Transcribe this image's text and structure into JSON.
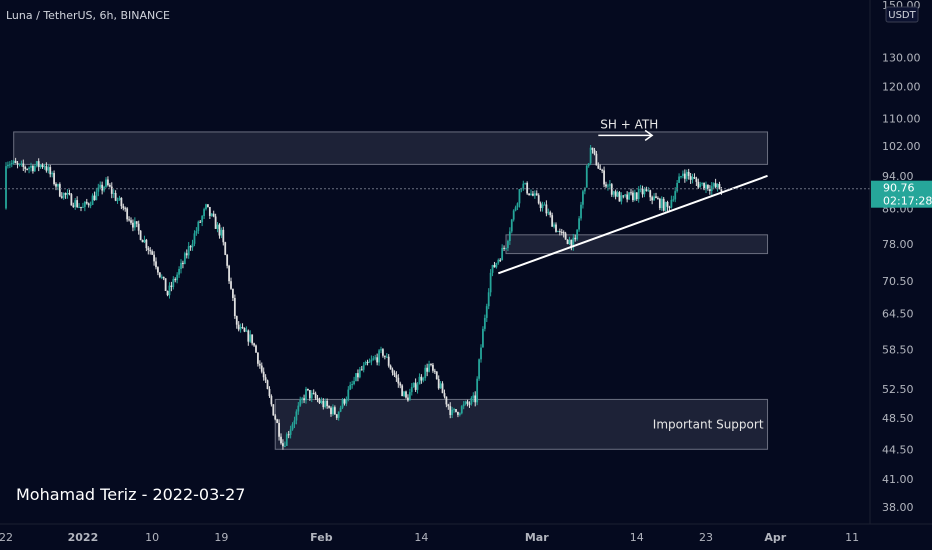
{
  "header": {
    "title": "Luna / TetherUS, 6h, BINANCE"
  },
  "signature": "Mohamad Teriz - 2022-03-27",
  "colors": {
    "background": "#050a1f",
    "up": "#26a69a",
    "down": "#e0e0e0",
    "tag": "#26a69a"
  },
  "chart_data": {
    "type": "candlestick",
    "symbol": "Luna / TetherUS",
    "timeframe": "6h",
    "exchange": "BINANCE",
    "price_axis": {
      "unit": "USDT",
      "scale": "log",
      "ticks": [
        "150.00",
        "130.00",
        "120.00",
        "110.00",
        "102.00",
        "94.00",
        "86.00",
        "78.00",
        "70.50",
        "64.50",
        "58.50",
        "52.50",
        "48.50",
        "44.50",
        "41.00",
        "38.00"
      ]
    },
    "time_axis": {
      "ticks": [
        "22",
        "2022",
        "10",
        "19",
        "Feb",
        "14",
        "Mar",
        "14",
        "23",
        "Apr",
        "11"
      ],
      "start": "2021-12-22",
      "end": "2022-04-11"
    },
    "last_price": {
      "value": "90.76",
      "countdown": "02:17:28"
    },
    "zones": [
      {
        "name": "upper-resistance-zone",
        "from_date": "2021-12-23",
        "to_date": "2022-03-31",
        "low": 97,
        "high": 106
      },
      {
        "name": "mid-support-zone",
        "from_date": "2022-02-25",
        "to_date": "2022-03-31",
        "low": 76,
        "high": 80
      },
      {
        "name": "important-support-zone",
        "from_date": "2022-01-26",
        "to_date": "2022-03-31",
        "low": 44.5,
        "high": 51,
        "label": "Important Support"
      }
    ],
    "trendline": {
      "from": [
        "2022-02-24",
        72
      ],
      "to": [
        "2022-03-31",
        94
      ]
    },
    "arrow_annotation": {
      "label": "SH + ATH",
      "from_date": "2022-03-09",
      "to_date": "2022-03-16",
      "price": 105
    },
    "candles": [
      [
        "2021-12-22",
        86,
        98
      ],
      [
        "2021-12-24",
        98,
        96
      ],
      [
        "2021-12-27",
        96,
        97
      ],
      [
        "2021-12-29",
        97,
        90
      ],
      [
        "2022-01-01",
        90,
        86
      ],
      [
        "2022-01-04",
        86,
        92
      ],
      [
        "2022-01-07",
        92,
        84
      ],
      [
        "2022-01-10",
        84,
        76
      ],
      [
        "2022-01-12",
        76,
        68
      ],
      [
        "2022-01-14",
        68,
        74
      ],
      [
        "2022-01-17",
        74,
        86
      ],
      [
        "2022-01-19",
        86,
        80
      ],
      [
        "2022-01-21",
        80,
        62
      ],
      [
        "2022-01-23",
        62,
        60
      ],
      [
        "2022-01-25",
        60,
        52
      ],
      [
        "2022-01-27",
        52,
        45
      ],
      [
        "2022-01-30",
        45,
        52
      ],
      [
        "2022-02-03",
        52,
        49
      ],
      [
        "2022-02-06",
        49,
        55
      ],
      [
        "2022-02-09",
        55,
        58
      ],
      [
        "2022-02-12",
        58,
        51
      ],
      [
        "2022-02-15",
        51,
        56
      ],
      [
        "2022-02-18",
        56,
        49
      ],
      [
        "2022-02-21",
        49,
        51
      ],
      [
        "2022-02-23",
        51,
        72
      ],
      [
        "2022-02-25",
        72,
        78
      ],
      [
        "2022-02-27",
        78,
        92
      ],
      [
        "2022-03-02",
        92,
        86
      ],
      [
        "2022-03-04",
        86,
        80
      ],
      [
        "2022-03-06",
        80,
        78
      ],
      [
        "2022-03-08",
        78,
        101
      ],
      [
        "2022-03-10",
        101,
        92
      ],
      [
        "2022-03-12",
        92,
        88
      ],
      [
        "2022-03-15",
        88,
        90
      ],
      [
        "2022-03-18",
        90,
        86
      ],
      [
        "2022-03-20",
        86,
        95
      ],
      [
        "2022-03-22",
        95,
        92
      ],
      [
        "2022-03-25",
        92,
        90.76
      ]
    ]
  }
}
